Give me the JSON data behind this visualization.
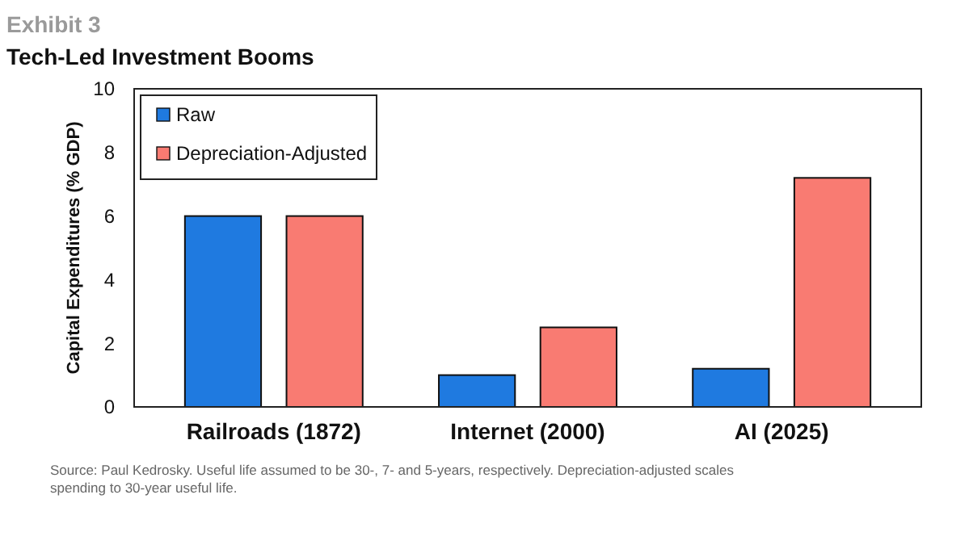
{
  "chart_data": {
    "type": "bar",
    "title": "Exhibit 3",
    "subtitle": "Tech-Led Investment Booms",
    "ylabel": "Capital Expenditures (% GDP)",
    "categories": [
      "Railroads (1872)",
      "Internet (2000)",
      "AI (2025)"
    ],
    "series": [
      {
        "name": "Raw",
        "color": "#1f7ae0",
        "values": [
          6,
          1,
          1.2
        ]
      },
      {
        "name": "Depreciation-Adjusted",
        "color": "#f97b72",
        "values": [
          6,
          2.5,
          7.2
        ]
      }
    ],
    "ylim": [
      0,
      10
    ],
    "yticks": [
      0,
      2,
      4,
      6,
      8,
      10
    ],
    "grid": false,
    "legend": "top left",
    "annotations": [
      "Source: Paul Kedrosky. Useful life assumed to be 30-, 7- and 5-years, respectively. Depreciation-adjusted scales spending to 30-year useful life."
    ]
  }
}
